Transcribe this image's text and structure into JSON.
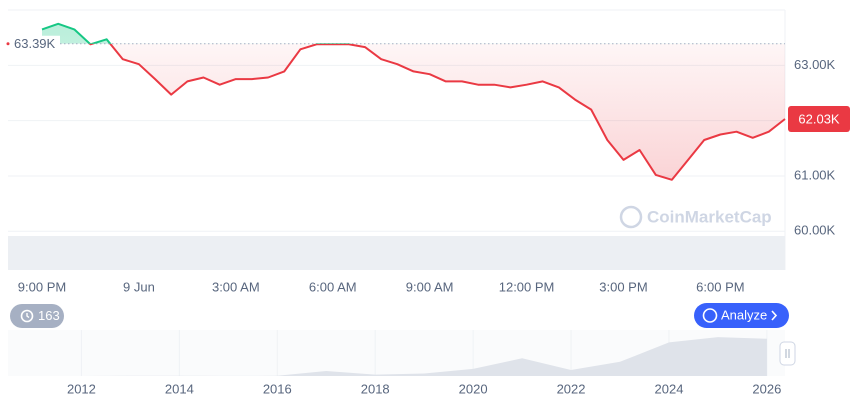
{
  "chart_data": [
    {
      "type": "line",
      "categories": [
        "9:00 PM",
        null,
        null,
        null,
        null,
        null,
        "9 Jun",
        null,
        null,
        null,
        null,
        null,
        "3:00 AM",
        null,
        null,
        null,
        null,
        null,
        "6:00 AM",
        null,
        null,
        null,
        null,
        null,
        "9:00 AM",
        null,
        null,
        null,
        null,
        null,
        "12:00 PM",
        null,
        null,
        null,
        null,
        null,
        "3:00 PM",
        null,
        null,
        null,
        null,
        null,
        "6:00 PM",
        null,
        null,
        null,
        null
      ],
      "values": [
        63650,
        63750,
        63650,
        63380,
        63470,
        63110,
        63020,
        62750,
        62470,
        62710,
        62780,
        62650,
        62750,
        62750,
        62780,
        62890,
        63290,
        63380,
        63380,
        63380,
        63330,
        63110,
        63020,
        62890,
        62840,
        62710,
        62710,
        62650,
        62650,
        62600,
        62650,
        62710,
        62600,
        62380,
        62200,
        61650,
        61290,
        61470,
        61020,
        60930,
        61290,
        61650,
        61750,
        61800,
        61690,
        61800,
        62030
      ],
      "color_up": "#16c784",
      "color_down": "#ea3943",
      "ylim": [
        59300,
        64000
      ],
      "yticks": [
        {
          "value": 60000,
          "label": "60.00K"
        },
        {
          "value": 61000,
          "label": "61.00K"
        },
        {
          "value": 62000,
          "label": "62.00K"
        },
        {
          "value": 63000,
          "label": "63.00K"
        }
      ],
      "grid": true,
      "reference_line": {
        "value": 63390,
        "label": "63.39K"
      },
      "last_price": {
        "value": 62030,
        "label": "62.03K"
      },
      "watermark": "CoinMarketCap"
    },
    {
      "type": "area",
      "x": [
        2011,
        2012,
        2013,
        2014,
        2015,
        2016,
        2017,
        2018,
        2019,
        2020,
        2021,
        2022,
        2023,
        2024,
        2025,
        2026
      ],
      "values": [
        5,
        10,
        800,
        500,
        300,
        700,
        14000,
        4000,
        7000,
        20000,
        50000,
        17000,
        40000,
        95000,
        110000,
        105000
      ],
      "color": "#dfe3ea",
      "xlim": [
        2010.5,
        2026.37
      ],
      "ylim": [
        0,
        130000
      ],
      "xticks": [
        2012,
        2014,
        2016,
        2018,
        2020,
        2022,
        2024,
        2026
      ]
    }
  ],
  "badge": "163",
  "analyze_button": "Analyze"
}
